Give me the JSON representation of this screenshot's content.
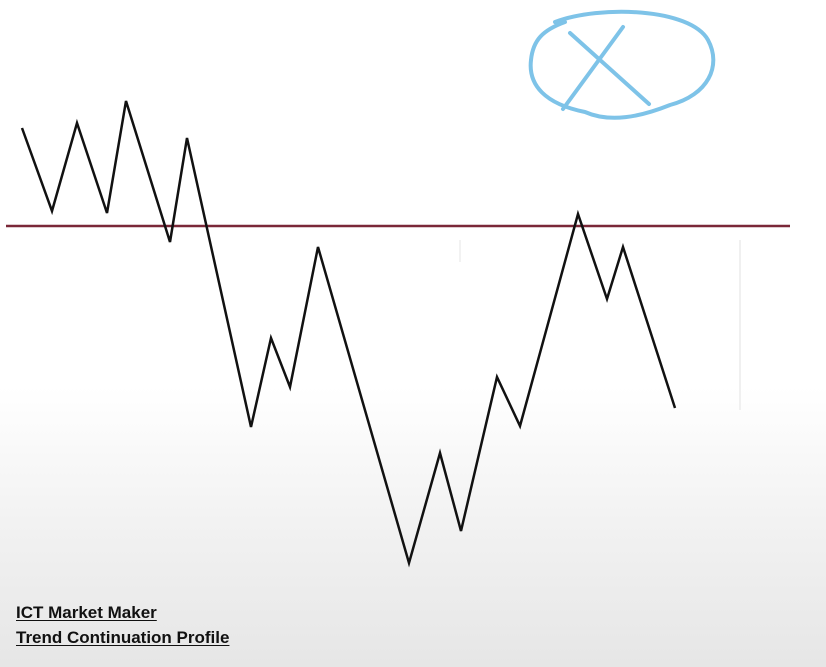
{
  "caption": {
    "line1": "ICT Market Maker",
    "line2": "Trend Continuation Profile"
  },
  "colors": {
    "price_path": "#111111",
    "level_line": "#7a2838",
    "annotation": "#7ec3e8"
  },
  "annotation": {
    "icon": "circled-x-icon"
  }
}
